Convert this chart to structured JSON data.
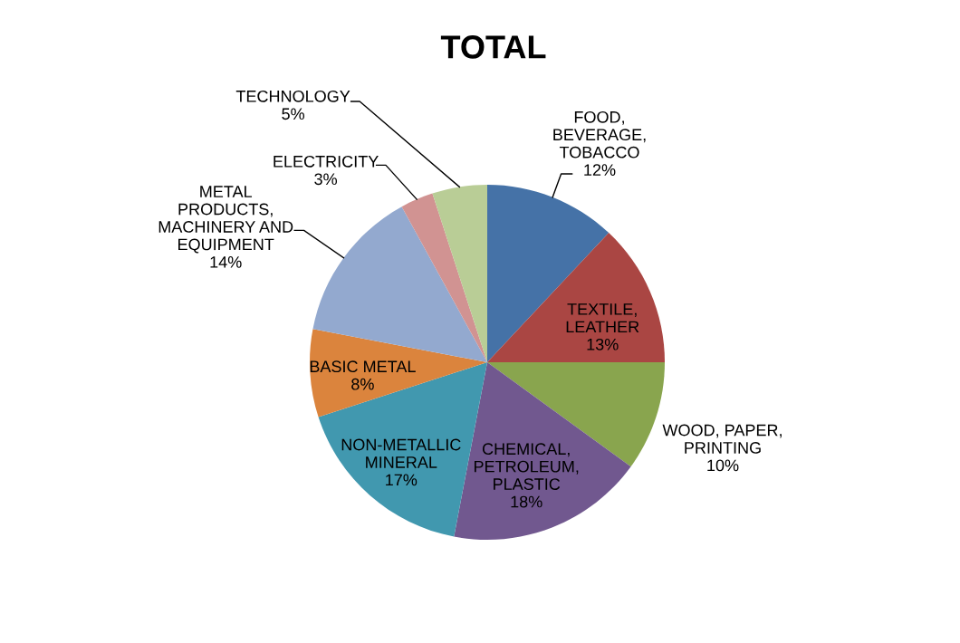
{
  "chart_data": {
    "type": "pie",
    "title": "TOTAL",
    "categories": [
      "FOOD,\nBEVERAGE,\nTOBACCO",
      "TEXTILE,\nLEATHER",
      "WOOD, PAPER,\nPRINTING",
      "CHEMICAL,\nPETROLEUM,\nPLASTIC",
      "NON-METALLIC\nMINERAL",
      "BASIC METAL",
      "METAL\nPRODUCTS,\nMACHINERY AND\nEQUIPMENT",
      "ELECTRICITY",
      "TECHNOLOGY"
    ],
    "values": [
      12,
      13,
      10,
      18,
      17,
      8,
      14,
      3,
      5
    ],
    "value_labels": [
      "12%",
      "13%",
      "10%",
      "18%",
      "17%",
      "8%",
      "14%",
      "3%",
      "5%"
    ],
    "colors": [
      "#4572a7",
      "#aa4643",
      "#89a54e",
      "#71588f",
      "#4198af",
      "#db843d",
      "#93a9cf",
      "#d19392",
      "#b9cd96"
    ],
    "legend": false
  }
}
